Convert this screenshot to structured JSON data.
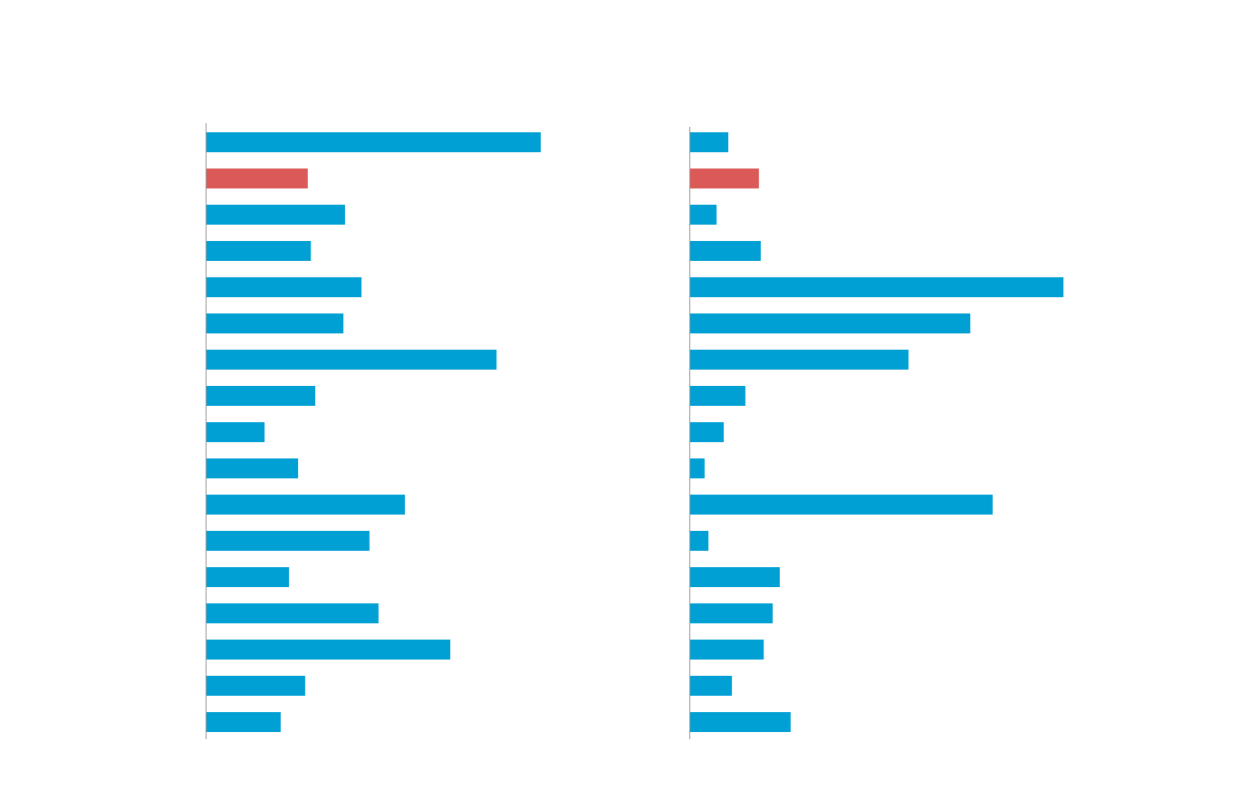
{
  "colors": {
    "bar": "#009fd4",
    "highlight": "#db5a58",
    "axis": "#999999",
    "background": "#ffffff"
  },
  "chart_data": [
    {
      "type": "bar",
      "orientation": "horizontal",
      "title": "",
      "xlabel": "",
      "ylabel": "",
      "grid": false,
      "xlim": [
        0,
        100
      ],
      "highlight_index": 1,
      "values": [
        100,
        30.5,
        41.6,
        31.4,
        46.5,
        41.1,
        86.8,
        32.7,
        17.6,
        27.6,
        59.5,
        48.9,
        24.9,
        51.6,
        73.0,
        29.7,
        22.4
      ]
    },
    {
      "type": "bar",
      "orientation": "horizontal",
      "title": "",
      "xlabel": "",
      "ylabel": "",
      "grid": false,
      "xlim": [
        0,
        100
      ],
      "highlight_index": 1,
      "values": [
        10.4,
        18.6,
        7.3,
        19.1,
        100,
        75.1,
        58.6,
        15.0,
        9.2,
        4.1,
        81.1,
        5.1,
        24.2,
        22.3,
        19.9,
        11.4,
        27.1
      ]
    }
  ]
}
